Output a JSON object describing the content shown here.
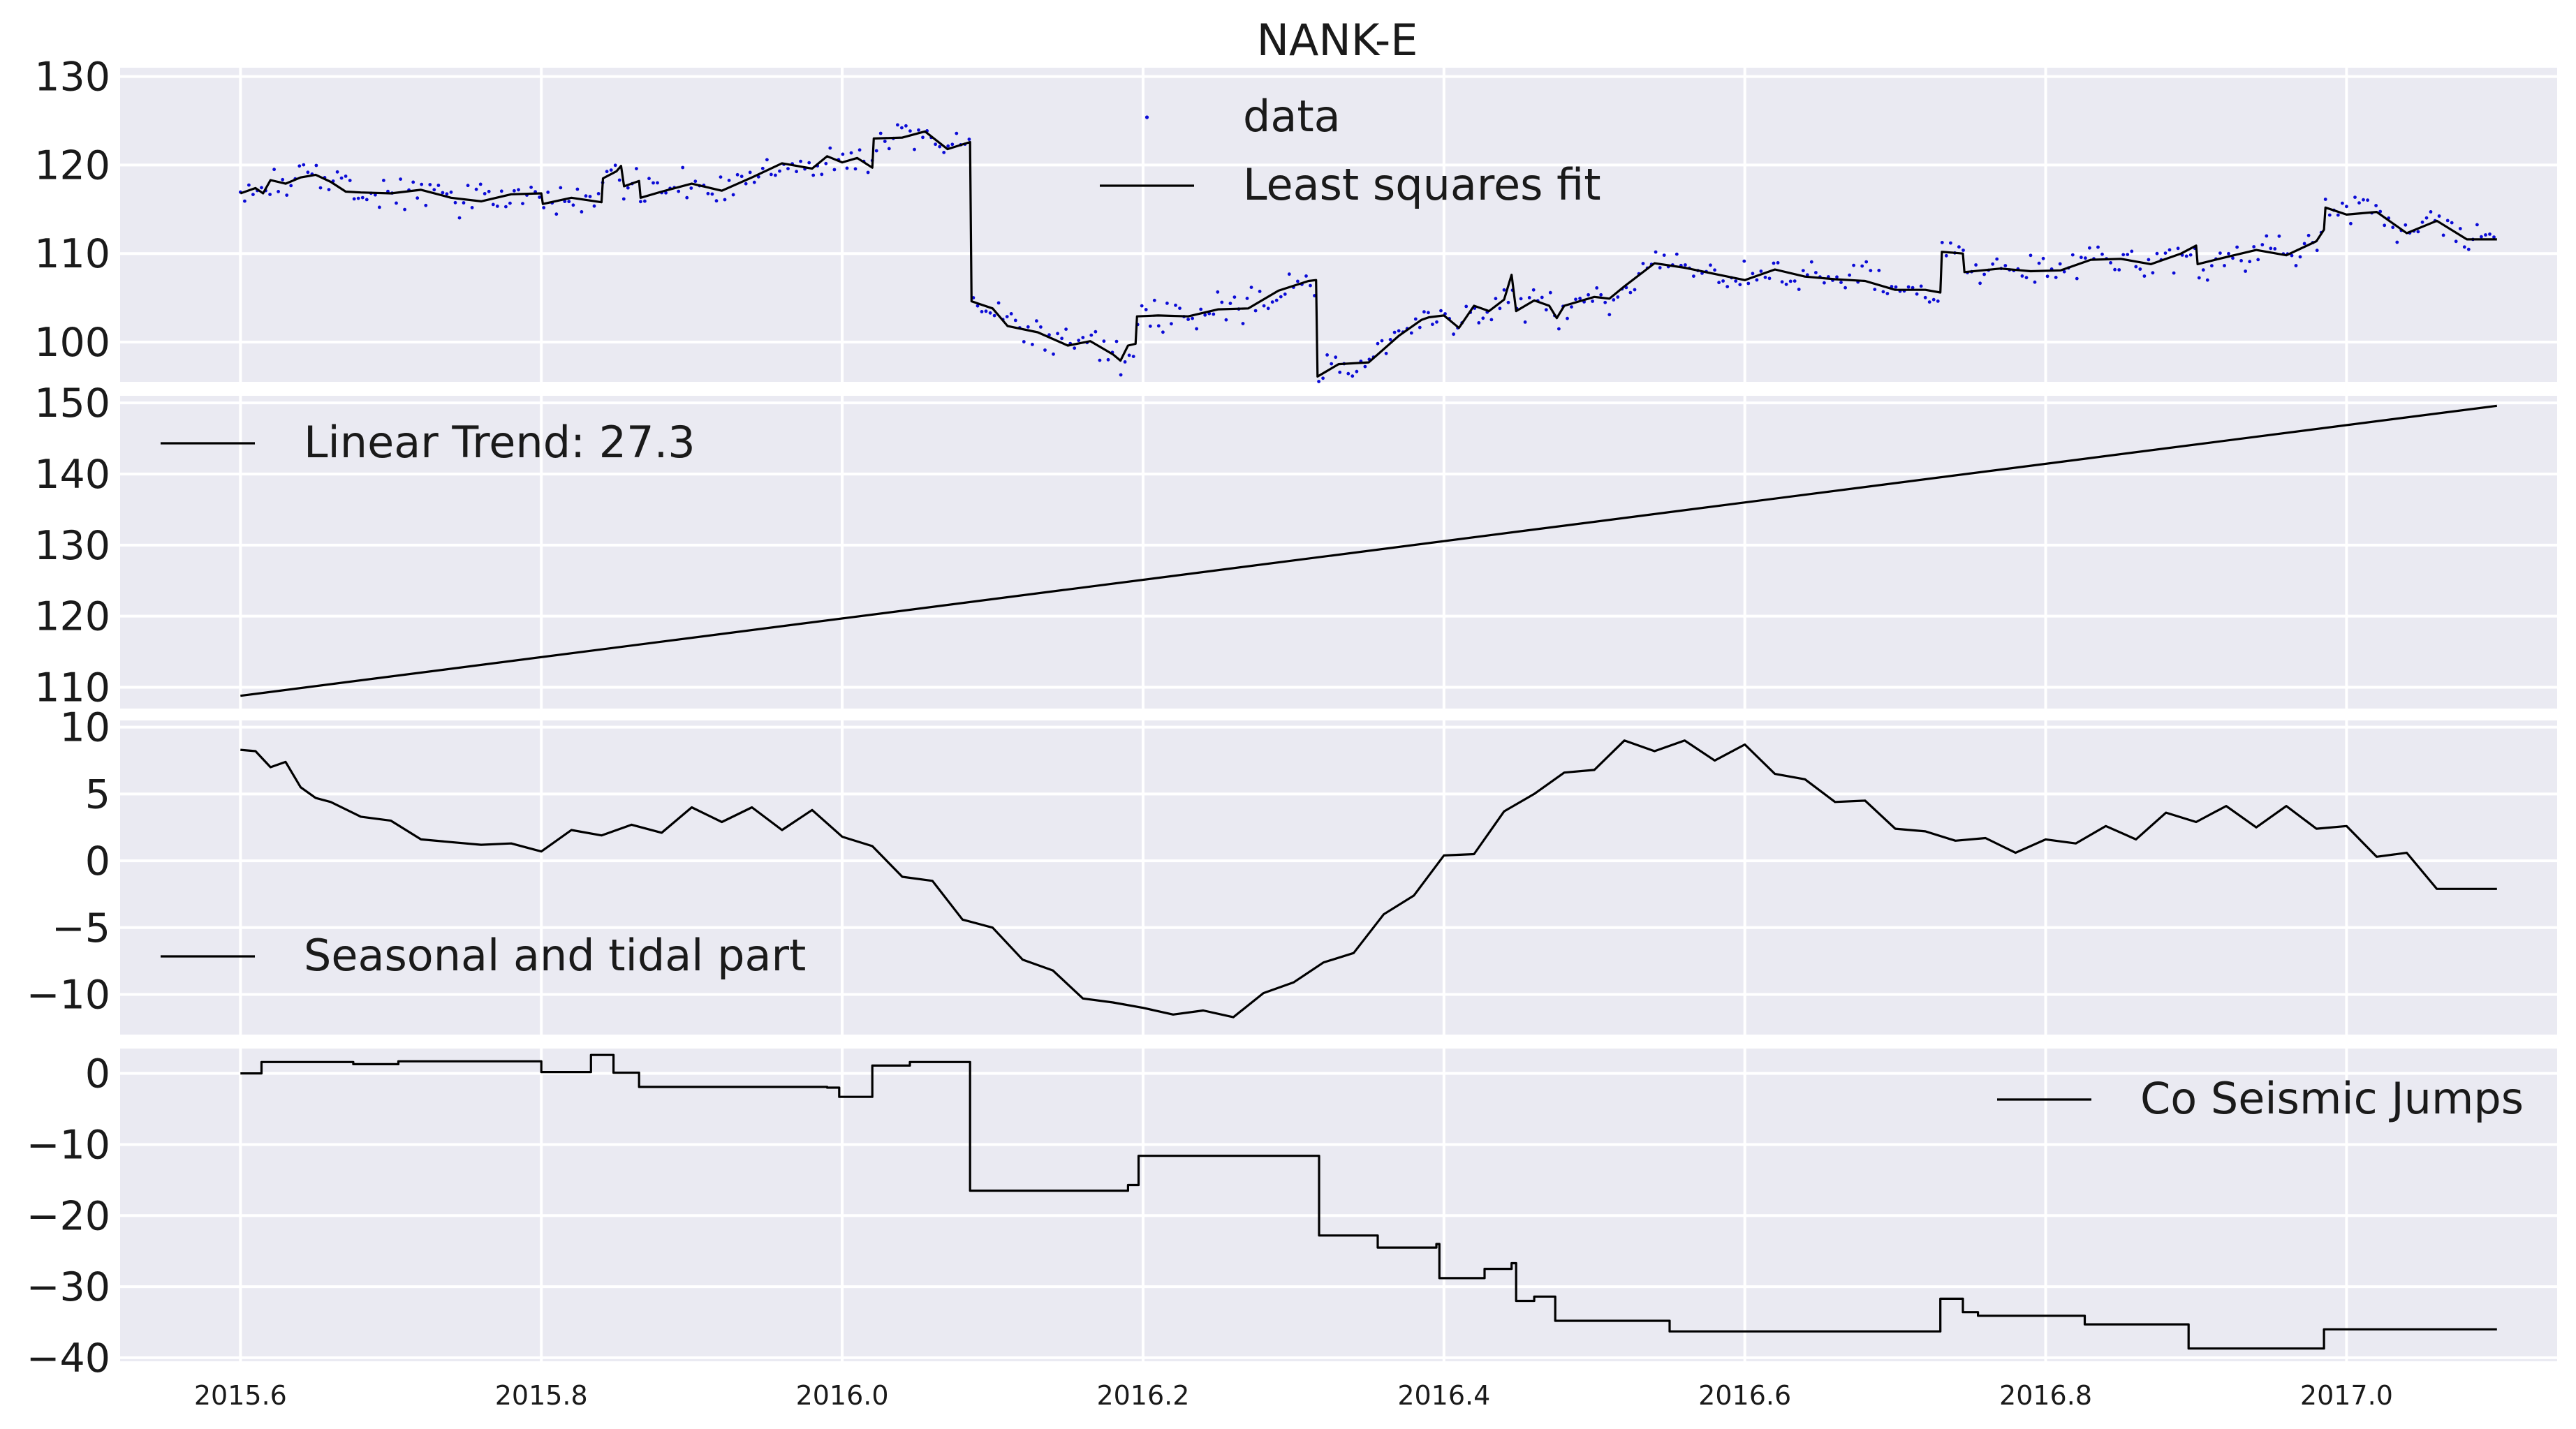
{
  "figure": {
    "title": "NANK-E",
    "background": "#ffffff",
    "panel_background": "#eaeaf2",
    "grid_color": "#ffffff",
    "line_color": "#000000",
    "dot_color": "#0b0bd6"
  },
  "chart_data": [
    {
      "type": "scatter",
      "title": "NANK-E",
      "ylim": [
        95.5,
        131
      ],
      "yticks": [
        100,
        110,
        120,
        130
      ],
      "ytick_labels": [
        "100",
        "110",
        "120",
        "130"
      ],
      "xlim": [
        2015.52,
        2017.14
      ],
      "xticks": [
        2015.6,
        2015.8,
        2016.0,
        2016.2,
        2016.4,
        2016.6,
        2016.8,
        2017.0
      ],
      "legend": {
        "placement": "top-center",
        "entries": [
          "data",
          "Least squares fit"
        ]
      },
      "grid": true,
      "series": [
        {
          "name": "data",
          "kind": "points",
          "note_values": "scatter of daily observations around the fit"
        },
        {
          "name": "Least squares fit",
          "kind": "line",
          "points": [
            [
              2015.6,
              116.8
            ],
            [
              2015.61,
              117.4
            ],
            [
              2015.615,
              116.8
            ],
            [
              2015.62,
              118.3
            ],
            [
              2015.63,
              117.9
            ],
            [
              2015.64,
              118.6
            ],
            [
              2015.65,
              118.9
            ],
            [
              2015.66,
              118.1
            ],
            [
              2015.67,
              117.0
            ],
            [
              2015.68,
              116.9
            ],
            [
              2015.7,
              116.8
            ],
            [
              2015.72,
              117.2
            ],
            [
              2015.74,
              116.3
            ],
            [
              2015.76,
              115.9
            ],
            [
              2015.78,
              116.7
            ],
            [
              2015.8,
              116.8
            ],
            [
              2015.801,
              115.6
            ],
            [
              2015.82,
              116.3
            ],
            [
              2015.84,
              115.8
            ],
            [
              2015.841,
              118.5
            ],
            [
              2015.85,
              119.3
            ],
            [
              2015.853,
              119.9
            ],
            [
              2015.855,
              117.6
            ],
            [
              2015.865,
              118.2
            ],
            [
              2015.866,
              116.3
            ],
            [
              2015.88,
              117.0
            ],
            [
              2015.9,
              117.9
            ],
            [
              2015.92,
              117.1
            ],
            [
              2015.94,
              118.6
            ],
            [
              2015.96,
              120.2
            ],
            [
              2015.98,
              119.6
            ],
            [
              2015.99,
              121.0
            ],
            [
              2016.0,
              120.3
            ],
            [
              2016.01,
              120.8
            ],
            [
              2016.02,
              119.7
            ],
            [
              2016.021,
              123.0
            ],
            [
              2016.04,
              123.1
            ],
            [
              2016.055,
              123.8
            ],
            [
              2016.07,
              121.8
            ],
            [
              2016.085,
              122.6
            ],
            [
              2016.086,
              104.6
            ],
            [
              2016.1,
              103.8
            ],
            [
              2016.11,
              101.8
            ],
            [
              2016.13,
              101.1
            ],
            [
              2016.15,
              99.6
            ],
            [
              2016.165,
              100.1
            ],
            [
              2016.18,
              98.6
            ],
            [
              2016.185,
              97.9
            ],
            [
              2016.19,
              99.6
            ],
            [
              2016.195,
              99.8
            ],
            [
              2016.196,
              102.9
            ],
            [
              2016.21,
              103.0
            ],
            [
              2016.23,
              102.9
            ],
            [
              2016.25,
              103.7
            ],
            [
              2016.27,
              103.8
            ],
            [
              2016.29,
              105.8
            ],
            [
              2016.31,
              106.9
            ],
            [
              2016.315,
              107.0
            ],
            [
              2016.316,
              96.1
            ],
            [
              2016.33,
              97.5
            ],
            [
              2016.35,
              97.7
            ],
            [
              2016.37,
              100.7
            ],
            [
              2016.385,
              102.5
            ],
            [
              2016.39,
              102.8
            ],
            [
              2016.4,
              103.0
            ],
            [
              2016.41,
              101.6
            ],
            [
              2016.42,
              104.1
            ],
            [
              2016.43,
              103.5
            ],
            [
              2016.44,
              104.8
            ],
            [
              2016.445,
              107.6
            ],
            [
              2016.448,
              103.5
            ],
            [
              2016.46,
              104.7
            ],
            [
              2016.47,
              104.1
            ],
            [
              2016.475,
              102.7
            ],
            [
              2016.48,
              104.1
            ],
            [
              2016.5,
              105.1
            ],
            [
              2016.51,
              104.9
            ],
            [
              2016.52,
              106.3
            ],
            [
              2016.54,
              108.9
            ],
            [
              2016.56,
              108.4
            ],
            [
              2016.58,
              107.7
            ],
            [
              2016.6,
              107.0
            ],
            [
              2016.62,
              108.2
            ],
            [
              2016.64,
              107.4
            ],
            [
              2016.66,
              107.1
            ],
            [
              2016.68,
              106.9
            ],
            [
              2016.7,
              105.9
            ],
            [
              2016.72,
              105.9
            ],
            [
              2016.73,
              105.6
            ],
            [
              2016.731,
              110.2
            ],
            [
              2016.745,
              110.0
            ],
            [
              2016.746,
              107.9
            ],
            [
              2016.77,
              108.3
            ],
            [
              2016.79,
              108.0
            ],
            [
              2016.81,
              108.1
            ],
            [
              2016.83,
              109.3
            ],
            [
              2016.85,
              109.4
            ],
            [
              2016.87,
              108.8
            ],
            [
              2016.89,
              110.0
            ],
            [
              2016.9,
              110.9
            ],
            [
              2016.901,
              108.8
            ],
            [
              2016.92,
              109.6
            ],
            [
              2016.94,
              110.4
            ],
            [
              2016.96,
              109.8
            ],
            [
              2016.98,
              111.4
            ],
            [
              2016.985,
              112.7
            ],
            [
              2016.986,
              115.2
            ],
            [
              2017.0,
              114.4
            ],
            [
              2017.02,
              114.7
            ],
            [
              2017.04,
              112.3
            ],
            [
              2017.06,
              113.7
            ],
            [
              2017.08,
              111.6
            ],
            [
              2017.1,
              111.6
            ]
          ]
        }
      ]
    },
    {
      "type": "line",
      "ylim": [
        107,
        151
      ],
      "yticks": [
        110,
        120,
        130,
        140,
        150
      ],
      "ytick_labels": [
        "110",
        "120",
        "130",
        "140",
        "150"
      ],
      "xlim": [
        2015.52,
        2017.14
      ],
      "legend": {
        "placement": "top-left",
        "entries": [
          "Linear Trend: 27.3"
        ]
      },
      "grid": true,
      "series": [
        {
          "name": "Linear Trend: 27.3",
          "points": [
            [
              2015.6,
              108.8
            ],
            [
              2017.1,
              149.6
            ]
          ]
        }
      ]
    },
    {
      "type": "line",
      "ylim": [
        -13,
        10.5
      ],
      "yticks": [
        -10,
        -5,
        0,
        5,
        10
      ],
      "ytick_labels": [
        "−10",
        "−5",
        "0",
        "5",
        "10"
      ],
      "xlim": [
        2015.52,
        2017.14
      ],
      "legend": {
        "placement": "bottom-left",
        "entries": [
          "Seasonal and tidal part"
        ]
      },
      "grid": true,
      "series": [
        {
          "name": "Seasonal and tidal part",
          "points": [
            [
              2015.6,
              8.3
            ],
            [
              2015.61,
              8.2
            ],
            [
              2015.62,
              7.0
            ],
            [
              2015.63,
              7.4
            ],
            [
              2015.64,
              5.5
            ],
            [
              2015.65,
              4.7
            ],
            [
              2015.66,
              4.4
            ],
            [
              2015.68,
              3.3
            ],
            [
              2015.7,
              3.0
            ],
            [
              2015.72,
              1.6
            ],
            [
              2015.74,
              1.4
            ],
            [
              2015.76,
              1.2
            ],
            [
              2015.78,
              1.3
            ],
            [
              2015.8,
              0.7
            ],
            [
              2015.82,
              2.3
            ],
            [
              2015.84,
              1.9
            ],
            [
              2015.86,
              2.7
            ],
            [
              2015.88,
              2.1
            ],
            [
              2015.9,
              4.0
            ],
            [
              2015.92,
              2.9
            ],
            [
              2015.94,
              4.0
            ],
            [
              2015.96,
              2.3
            ],
            [
              2015.98,
              3.8
            ],
            [
              2016.0,
              1.8
            ],
            [
              2016.02,
              1.1
            ],
            [
              2016.04,
              -1.2
            ],
            [
              2016.06,
              -1.5
            ],
            [
              2016.08,
              -4.4
            ],
            [
              2016.1,
              -5.0
            ],
            [
              2016.12,
              -7.4
            ],
            [
              2016.14,
              -8.2
            ],
            [
              2016.16,
              -10.3
            ],
            [
              2016.18,
              -10.6
            ],
            [
              2016.2,
              -11.0
            ],
            [
              2016.22,
              -11.5
            ],
            [
              2016.24,
              -11.2
            ],
            [
              2016.26,
              -11.7
            ],
            [
              2016.28,
              -9.9
            ],
            [
              2016.3,
              -9.1
            ],
            [
              2016.32,
              -7.6
            ],
            [
              2016.34,
              -6.9
            ],
            [
              2016.36,
              -4.0
            ],
            [
              2016.38,
              -2.6
            ],
            [
              2016.4,
              0.4
            ],
            [
              2016.42,
              0.5
            ],
            [
              2016.44,
              3.7
            ],
            [
              2016.46,
              5.0
            ],
            [
              2016.48,
              6.6
            ],
            [
              2016.5,
              6.8
            ],
            [
              2016.52,
              9.0
            ],
            [
              2016.54,
              8.2
            ],
            [
              2016.56,
              9.0
            ],
            [
              2016.58,
              7.5
            ],
            [
              2016.6,
              8.7
            ],
            [
              2016.62,
              6.5
            ],
            [
              2016.64,
              6.1
            ],
            [
              2016.66,
              4.4
            ],
            [
              2016.68,
              4.5
            ],
            [
              2016.7,
              2.4
            ],
            [
              2016.72,
              2.2
            ],
            [
              2016.74,
              1.5
            ],
            [
              2016.76,
              1.7
            ],
            [
              2016.78,
              0.6
            ],
            [
              2016.8,
              1.6
            ],
            [
              2016.82,
              1.3
            ],
            [
              2016.84,
              2.6
            ],
            [
              2016.86,
              1.6
            ],
            [
              2016.88,
              3.6
            ],
            [
              2016.9,
              2.9
            ],
            [
              2016.92,
              4.1
            ],
            [
              2016.94,
              2.5
            ],
            [
              2016.96,
              4.1
            ],
            [
              2016.98,
              2.4
            ],
            [
              2017.0,
              2.6
            ],
            [
              2017.02,
              0.3
            ],
            [
              2017.04,
              0.6
            ],
            [
              2017.06,
              -2.1
            ],
            [
              2017.08,
              -2.1
            ],
            [
              2017.1,
              -2.1
            ]
          ]
        }
      ]
    },
    {
      "type": "line",
      "ylim": [
        -40.5,
        3.5
      ],
      "yticks": [
        -40,
        -30,
        -20,
        -10,
        0
      ],
      "ytick_labels": [
        "−40",
        "−30",
        "−20",
        "−10",
        "0"
      ],
      "xlim": [
        2015.52,
        2017.14
      ],
      "xticks": [
        2015.6,
        2015.8,
        2016.0,
        2016.2,
        2016.4,
        2016.6,
        2016.8,
        2017.0
      ],
      "xtick_labels": [
        "2015.6",
        "2015.8",
        "2016.0",
        "2016.2",
        "2016.4",
        "2016.6",
        "2016.8",
        "2017.0"
      ],
      "legend": {
        "placement": "top-right",
        "entries": [
          "Co Seismic Jumps"
        ]
      },
      "grid": true,
      "series": [
        {
          "name": "Co Seismic Jumps",
          "step": true,
          "points": [
            [
              2015.6,
              0.0
            ],
            [
              2015.614,
              1.6
            ],
            [
              2015.675,
              1.3
            ],
            [
              2015.705,
              1.7
            ],
            [
              2015.8,
              0.2
            ],
            [
              2015.833,
              2.6
            ],
            [
              2015.848,
              0.1
            ],
            [
              2015.865,
              -1.9
            ],
            [
              2015.99,
              -2.0
            ],
            [
              2015.998,
              -3.3
            ],
            [
              2016.02,
              1.1
            ],
            [
              2016.045,
              1.6
            ],
            [
              2016.085,
              -16.5
            ],
            [
              2016.19,
              -15.7
            ],
            [
              2016.197,
              -11.6
            ],
            [
              2016.317,
              -22.8
            ],
            [
              2016.356,
              -24.5
            ],
            [
              2016.395,
              -24.0
            ],
            [
              2016.397,
              -28.8
            ],
            [
              2016.427,
              -27.5
            ],
            [
              2016.445,
              -26.7
            ],
            [
              2016.448,
              -32.0
            ],
            [
              2016.46,
              -31.4
            ],
            [
              2016.474,
              -34.8
            ],
            [
              2016.55,
              -36.3
            ],
            [
              2016.73,
              -31.7
            ],
            [
              2016.745,
              -33.6
            ],
            [
              2016.755,
              -34.1
            ],
            [
              2016.826,
              -35.3
            ],
            [
              2016.895,
              -38.7
            ],
            [
              2016.985,
              -36.0
            ],
            [
              2017.1,
              -36.0
            ]
          ]
        }
      ]
    }
  ]
}
